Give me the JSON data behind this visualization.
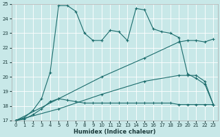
{
  "xlabel": "Humidex (Indice chaleur)",
  "xlim": [
    -0.5,
    23.5
  ],
  "ylim": [
    17,
    25
  ],
  "xticks": [
    0,
    1,
    2,
    3,
    4,
    5,
    6,
    7,
    8,
    9,
    10,
    11,
    12,
    13,
    14,
    15,
    16,
    17,
    18,
    19,
    20,
    21,
    22,
    23
  ],
  "yticks": [
    17,
    18,
    19,
    20,
    21,
    22,
    23,
    24,
    25
  ],
  "bg_color": "#c8e8e8",
  "grid_color": "#ffffff",
  "line_color": "#1a6b6b",
  "lines": [
    {
      "x": [
        0,
        1,
        2,
        3,
        4,
        5,
        6,
        7,
        8,
        9,
        10,
        11,
        12,
        13,
        14,
        15,
        16,
        17,
        18,
        19,
        20,
        21,
        22,
        23
      ],
      "y": [
        17.0,
        17.2,
        17.7,
        18.5,
        20.3,
        24.9,
        24.9,
        24.5,
        23.0,
        22.5,
        22.5,
        23.2,
        23.1,
        22.5,
        24.7,
        24.6,
        23.3,
        23.1,
        23.0,
        22.7,
        20.2,
        19.9,
        19.5,
        18.1
      ]
    },
    {
      "x": [
        0,
        5,
        10,
        15,
        19,
        20,
        21,
        22,
        23
      ],
      "y": [
        17.0,
        18.5,
        20.0,
        21.3,
        22.4,
        22.5,
        22.5,
        22.4,
        22.6
      ]
    },
    {
      "x": [
        0,
        5,
        10,
        15,
        19,
        20,
        21,
        22,
        23
      ],
      "y": [
        17.0,
        17.8,
        18.8,
        19.7,
        20.1,
        20.1,
        20.1,
        19.7,
        18.1
      ]
    },
    {
      "x": [
        0,
        1,
        2,
        3,
        4,
        5,
        6,
        7,
        8,
        9,
        10,
        11,
        12,
        13,
        14,
        15,
        16,
        17,
        18,
        19,
        20,
        21,
        22,
        23
      ],
      "y": [
        17.0,
        17.1,
        17.4,
        17.8,
        18.3,
        18.5,
        18.4,
        18.3,
        18.2,
        18.2,
        18.2,
        18.2,
        18.2,
        18.2,
        18.2,
        18.2,
        18.2,
        18.2,
        18.2,
        18.1,
        18.1,
        18.1,
        18.1,
        18.1
      ]
    }
  ]
}
